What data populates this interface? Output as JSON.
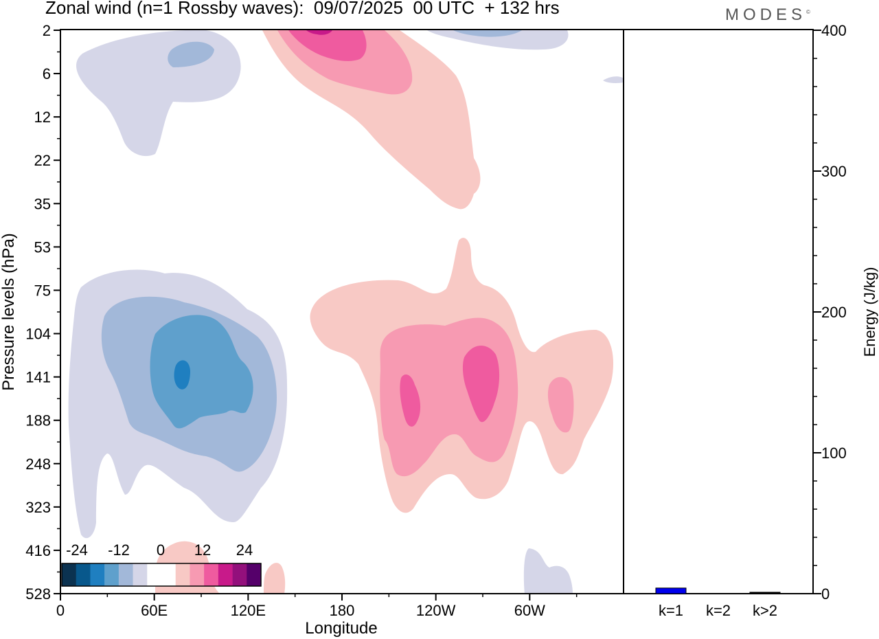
{
  "title": "Zonal wind (n=1 Rossby waves):  09/07/2025  00 UTC  + 132 hrs",
  "brand": "MODES",
  "brand_mark": "©",
  "chart_data": [
    {
      "type": "heatmap",
      "title": "Zonal wind (n=1 Rossby waves):  09/07/2025  00 UTC  + 132 hrs",
      "xlabel": "Longitude",
      "ylabel": "Pressure levels (hPa)",
      "x_ticks": [
        "0",
        "60E",
        "120E",
        "180",
        "120W",
        "60W"
      ],
      "y_ticks": [
        "2",
        "6",
        "12",
        "22",
        "35",
        "53",
        "75",
        "104",
        "141",
        "188",
        "248",
        "323",
        "416",
        "528"
      ],
      "colorbar": {
        "labels": [
          "-24",
          "-12",
          "0",
          "12",
          "24"
        ],
        "colors": [
          "#0b3250",
          "#08588c",
          "#1f7fc0",
          "#5fa0cc",
          "#a2b8d9",
          "#d5d6e8",
          "#ffffff",
          "#ffffff",
          "#f8c9c5",
          "#f79ab2",
          "#ef5b9f",
          "#c81a8a",
          "#93107c",
          "#55006a"
        ]
      },
      "features": [
        {
          "name": "easterly core",
          "sign": "negative",
          "lon_center": 80,
          "level_center": "141",
          "peak": -18
        },
        {
          "name": "upper easterlies",
          "sign": "negative",
          "lon_center": 40,
          "level_center": "6",
          "peak": -6
        },
        {
          "name": "westerly core west",
          "sign": "positive",
          "lon_center": 235,
          "level_center": "141",
          "peak": 12
        },
        {
          "name": "westerly core east",
          "sign": "positive",
          "lon_center": 273,
          "level_center": "141",
          "peak": 12
        },
        {
          "name": "upper westerlies",
          "sign": "positive",
          "lon_center": 190,
          "level_center": "2",
          "peak": 15
        }
      ]
    },
    {
      "type": "bar",
      "categories": [
        "k=1",
        "k=2",
        "k>2"
      ],
      "values": [
        4,
        0,
        1
      ],
      "colors": [
        "#0000ee",
        "#0000ee",
        "#000000"
      ],
      "ylabel": "Energy (J/kg)",
      "y_ticks": [
        "0",
        "100",
        "200",
        "300",
        "400"
      ],
      "ylim": [
        0,
        400
      ]
    }
  ]
}
